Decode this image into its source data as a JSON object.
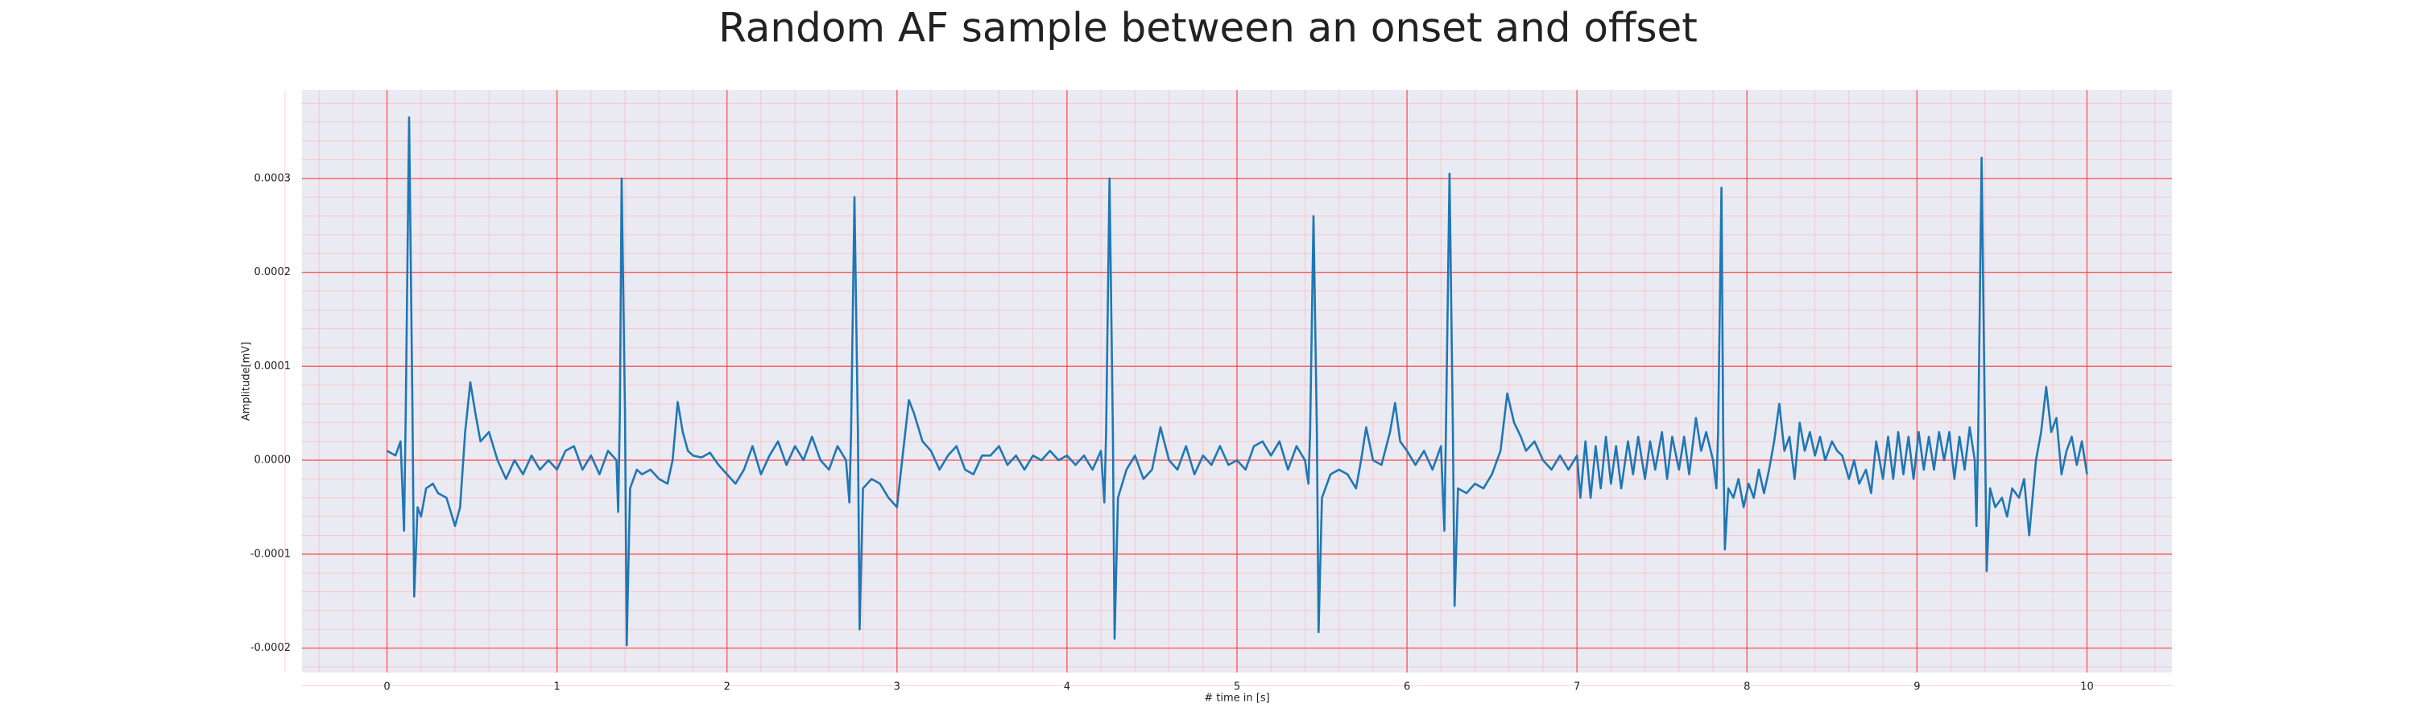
{
  "chart_data": {
    "type": "line",
    "title": "Random AF sample between an onset and offset",
    "xlabel": "# time in [s]",
    "ylabel": "Amplitude[mV]",
    "xlim": [
      -0.5,
      10.5
    ],
    "ylim": [
      -0.000226,
      0.000394
    ],
    "xticks": [
      0,
      1,
      2,
      3,
      4,
      5,
      6,
      7,
      8,
      9,
      10
    ],
    "yticks": [
      -0.0002,
      -0.0001,
      {
        "value": 0,
        "label": "0.0000"
      },
      0.0001,
      0.0002,
      0.0003
    ],
    "grid": true,
    "minor_grid": true,
    "series": [
      {
        "color": "#1f77b4",
        "x": [
          0,
          0.05,
          0.08,
          0.1,
          0.11,
          0.13,
          0.15,
          0.16,
          0.18,
          0.2,
          0.23,
          0.27,
          0.3,
          0.35,
          0.4,
          0.43,
          0.46,
          0.49,
          0.52,
          0.55,
          0.6,
          0.65,
          0.7,
          0.75,
          0.8,
          0.85,
          0.9,
          0.95,
          1.0,
          1.05,
          1.1,
          1.15,
          1.2,
          1.25,
          1.3,
          1.35,
          1.36,
          1.37,
          1.38,
          1.4,
          1.41,
          1.43,
          1.47,
          1.5,
          1.55,
          1.6,
          1.65,
          1.68,
          1.71,
          1.74,
          1.77,
          1.8,
          1.85,
          1.9,
          1.95,
          2.0,
          2.05,
          2.1,
          2.15,
          2.2,
          2.25,
          2.3,
          2.35,
          2.4,
          2.45,
          2.5,
          2.55,
          2.6,
          2.65,
          2.7,
          2.72,
          2.73,
          2.75,
          2.77,
          2.78,
          2.8,
          2.85,
          2.9,
          2.95,
          3.0,
          3.03,
          3.07,
          3.1,
          3.15,
          3.2,
          3.25,
          3.3,
          3.35,
          3.4,
          3.45,
          3.5,
          3.55,
          3.6,
          3.65,
          3.7,
          3.75,
          3.8,
          3.85,
          3.9,
          3.95,
          4.0,
          4.05,
          4.1,
          4.15,
          4.2,
          4.22,
          4.23,
          4.25,
          4.27,
          4.28,
          4.3,
          4.35,
          4.4,
          4.45,
          4.5,
          4.55,
          4.6,
          4.65,
          4.7,
          4.75,
          4.8,
          4.85,
          4.9,
          4.95,
          5.0,
          5.05,
          5.1,
          5.15,
          5.2,
          5.25,
          5.3,
          5.35,
          5.4,
          5.42,
          5.43,
          5.45,
          5.47,
          5.48,
          5.5,
          5.55,
          5.6,
          5.65,
          5.7,
          5.73,
          5.76,
          5.8,
          5.85,
          5.9,
          5.93,
          5.96,
          6.0,
          6.05,
          6.1,
          6.15,
          6.2,
          6.22,
          6.23,
          6.25,
          6.27,
          6.28,
          6.3,
          6.35,
          6.4,
          6.45,
          6.5,
          6.55,
          6.59,
          6.63,
          6.67,
          6.7,
          6.75,
          6.8,
          6.85,
          6.9,
          6.95,
          7.0,
          7.02,
          7.05,
          7.08,
          7.11,
          7.14,
          7.17,
          7.2,
          7.23,
          7.26,
          7.3,
          7.33,
          7.36,
          7.4,
          7.43,
          7.46,
          7.5,
          7.53,
          7.56,
          7.6,
          7.63,
          7.66,
          7.7,
          7.73,
          7.76,
          7.8,
          7.82,
          7.83,
          7.85,
          7.86,
          7.87,
          7.89,
          7.92,
          7.95,
          7.98,
          8.01,
          8.04,
          8.07,
          8.1,
          8.13,
          8.16,
          8.19,
          8.22,
          8.25,
          8.28,
          8.31,
          8.34,
          8.37,
          8.4,
          8.43,
          8.46,
          8.5,
          8.53,
          8.56,
          8.6,
          8.63,
          8.66,
          8.7,
          8.73,
          8.76,
          8.8,
          8.83,
          8.86,
          8.89,
          8.92,
          8.95,
          8.98,
          9.01,
          9.04,
          9.07,
          9.1,
          9.13,
          9.16,
          9.19,
          9.22,
          9.25,
          9.28,
          9.31,
          9.34,
          9.35,
          9.36,
          9.38,
          9.4,
          9.41,
          9.43,
          9.46,
          9.5,
          9.53,
          9.56,
          9.6,
          9.63,
          9.66,
          9.7,
          9.73,
          9.76,
          9.79,
          9.82,
          9.85,
          9.88,
          9.91,
          9.94,
          9.97,
          10.0
        ],
        "values": [
          1e-05,
          5e-06,
          2e-05,
          -7.5e-05,
          5e-05,
          0.000365,
          5e-05,
          -0.000145,
          -5e-05,
          -6e-05,
          -3e-05,
          -2.5e-05,
          -3.5e-05,
          -4e-05,
          -7e-05,
          -5e-05,
          3e-05,
          8.3e-05,
          5e-05,
          2e-05,
          3e-05,
          0,
          -2e-05,
          0,
          -1.5e-05,
          5e-06,
          -1e-05,
          0,
          -1e-05,
          1e-05,
          1.5e-05,
          -1e-05,
          5e-06,
          -1.5e-05,
          1e-05,
          0,
          -5.5e-05,
          5e-05,
          0.0003,
          5e-05,
          -0.000197,
          -3e-05,
          -1e-05,
          -1.5e-05,
          -1e-05,
          -2e-05,
          -2.5e-05,
          0,
          6.2e-05,
          3e-05,
          1e-05,
          5e-06,
          3e-06,
          8e-06,
          -5e-06,
          -1.5e-05,
          -2.5e-05,
          -1e-05,
          1.5e-05,
          -1.5e-05,
          5e-06,
          2e-05,
          -5e-06,
          1.5e-05,
          0,
          2.5e-05,
          0,
          -1e-05,
          1.5e-05,
          0,
          -4.5e-05,
          3e-05,
          0.00028,
          3e-05,
          -0.00018,
          -3e-05,
          -2e-05,
          -2.5e-05,
          -4e-05,
          -5e-05,
          0,
          6.4e-05,
          5e-05,
          2e-05,
          1e-05,
          -1e-05,
          5e-06,
          1.5e-05,
          -1e-05,
          -1.5e-05,
          5e-06,
          5e-06,
          1.5e-05,
          -5e-06,
          5e-06,
          -1e-05,
          5e-06,
          0,
          1e-05,
          0,
          5e-06,
          -5e-06,
          5e-06,
          -1e-05,
          1e-05,
          -4.5e-05,
          3e-05,
          0.0003,
          3e-05,
          -0.00019,
          -4e-05,
          -1e-05,
          5e-06,
          -2e-05,
          -1e-05,
          3.5e-05,
          0,
          -1e-05,
          1.5e-05,
          -1.5e-05,
          5e-06,
          -5e-06,
          1.5e-05,
          -5e-06,
          0,
          -1e-05,
          1.5e-05,
          2e-05,
          5e-06,
          2e-05,
          -1e-05,
          1.5e-05,
          0,
          -2.5e-05,
          3e-05,
          0.00026,
          3e-05,
          -0.000183,
          -4e-05,
          -1.5e-05,
          -1e-05,
          -1.5e-05,
          -3e-05,
          0,
          3.5e-05,
          0,
          -5e-06,
          3e-05,
          6.1e-05,
          2e-05,
          1e-05,
          -5e-06,
          1e-05,
          -1e-05,
          1.5e-05,
          -7.5e-05,
          4e-05,
          0.000305,
          3e-05,
          -0.000155,
          -3e-05,
          -3.5e-05,
          -2.5e-05,
          -3e-05,
          -1.5e-05,
          1e-05,
          7.1e-05,
          4e-05,
          2.5e-05,
          1e-05,
          2e-05,
          0,
          -1e-05,
          5e-06,
          -1e-05,
          5e-06,
          -4e-05,
          2e-05,
          -4e-05,
          1.5e-05,
          -3e-05,
          2.5e-05,
          -2.5e-05,
          1.5e-05,
          -3e-05,
          2e-05,
          -1.5e-05,
          2.5e-05,
          -2e-05,
          2e-05,
          -1e-05,
          3e-05,
          -2e-05,
          2.5e-05,
          -1e-05,
          2.5e-05,
          -1.5e-05,
          4.5e-05,
          1e-05,
          3e-05,
          0,
          -3e-05,
          3e-05,
          0.00029,
          3e-05,
          -9.5e-05,
          -3e-05,
          -4e-05,
          -2e-05,
          -5e-05,
          -2.5e-05,
          -4e-05,
          -1e-05,
          -3.5e-05,
          -1e-05,
          2e-05,
          6e-05,
          1e-05,
          2.5e-05,
          -2e-05,
          4e-05,
          1e-05,
          3e-05,
          5e-06,
          2.5e-05,
          0,
          2e-05,
          1e-05,
          5e-06,
          -2e-05,
          0,
          -2.5e-05,
          -1e-05,
          -3.5e-05,
          2e-05,
          -2e-05,
          2.5e-05,
          -2e-05,
          3e-05,
          -1.5e-05,
          2.5e-05,
          -2e-05,
          3e-05,
          -1e-05,
          2.5e-05,
          -1e-05,
          3e-05,
          0,
          3e-05,
          -2e-05,
          2.5e-05,
          -1e-05,
          3.5e-05,
          0,
          -7e-05,
          3e-05,
          0.000322,
          3e-05,
          -0.000118,
          -3e-05,
          -5e-05,
          -4e-05,
          -6e-05,
          -3e-05,
          -4e-05,
          -2e-05,
          -8e-05,
          0,
          3e-05,
          7.8e-05,
          3e-05,
          4.5e-05,
          -1.5e-05,
          1e-05,
          2.5e-05,
          -5e-06,
          2e-05,
          -1.5e-05
        ]
      }
    ]
  }
}
